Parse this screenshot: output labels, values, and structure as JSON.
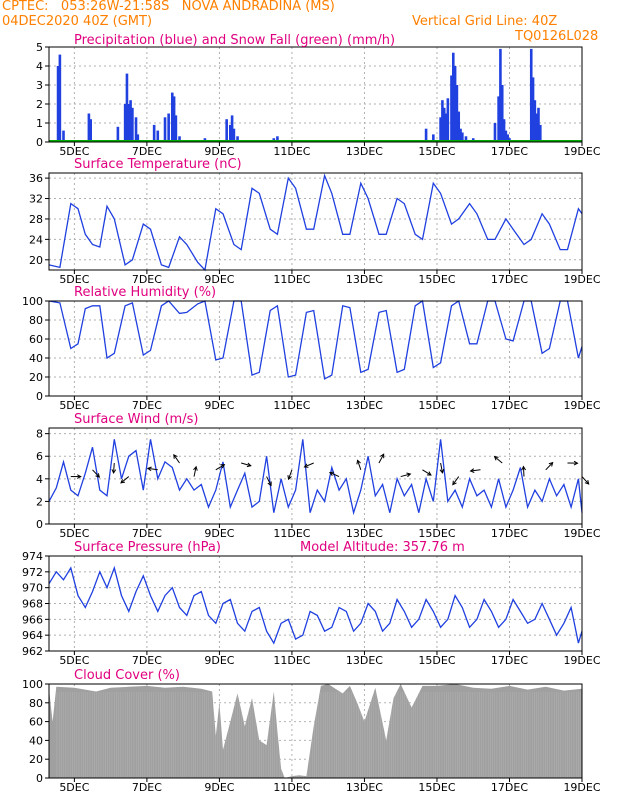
{
  "header": {
    "station": "CPTEC:   053:26W-21:58S   NOVA ANDRADINA (MS)",
    "run": "04DEC2020 40Z (GMT)",
    "grid_note": "Vertical Grid Line: 40Z",
    "code": "TQ0126L028"
  },
  "x_ticks": [
    "5DEC",
    "7DEC",
    "9DEC",
    "11DEC",
    "13DEC",
    "15DEC",
    "17DEC",
    "19DEC"
  ],
  "colors": {
    "header": "#ff8000",
    "title": "#e0007f",
    "line": "#2040e0",
    "snow": "#00aa00",
    "cloud": "#a0a0a0",
    "grid": "#b0b0b0"
  },
  "chart_data": [
    {
      "type": "bar",
      "title": "Precipitation (blue) and Snow Fall (green) (mm/h)",
      "ylim": [
        0,
        5
      ],
      "yticks": [
        "0",
        "1",
        "2",
        "3",
        "4",
        "5"
      ],
      "series": [
        {
          "name": "Precipitation",
          "color": "#2040e0",
          "x": [
            4.55,
            4.6,
            4.7,
            5.4,
            5.45,
            6.2,
            6.4,
            6.45,
            6.5,
            6.55,
            6.6,
            6.7,
            6.75,
            7.2,
            7.3,
            7.5,
            7.6,
            7.7,
            7.75,
            7.8,
            7.9,
            8.6,
            9.2,
            9.3,
            9.35,
            9.4,
            9.5,
            10.5,
            10.6,
            14.7,
            14.9,
            15.1,
            15.15,
            15.2,
            15.25,
            15.3,
            15.4,
            15.45,
            15.5,
            15.55,
            15.6,
            15.65,
            15.7,
            15.8,
            16.0,
            16.6,
            16.7,
            16.75,
            16.8,
            16.85,
            16.9,
            16.95,
            17.0,
            17.6,
            17.65,
            17.7,
            17.75,
            17.8,
            17.85
          ],
          "values": [
            4.0,
            4.6,
            0.6,
            1.5,
            1.2,
            0.8,
            2.0,
            3.6,
            2.0,
            2.2,
            1.8,
            1.3,
            0.4,
            0.9,
            0.6,
            1.3,
            1.5,
            2.6,
            2.4,
            1.4,
            0.3,
            0.2,
            1.2,
            0.9,
            1.4,
            0.7,
            0.3,
            0.2,
            0.3,
            0.7,
            0.4,
            1.3,
            2.2,
            1.8,
            1.5,
            2.3,
            3.5,
            4.7,
            4.0,
            3.0,
            1.6,
            0.7,
            0.5,
            0.3,
            0.2,
            1.0,
            2.4,
            4.9,
            3.0,
            1.2,
            0.6,
            0.4,
            0.2,
            4.9,
            3.4,
            2.2,
            1.5,
            1.8,
            0.9
          ]
        },
        {
          "name": "Snow Fall",
          "color": "#00aa00",
          "x": [
            4.3,
            19.0
          ],
          "values": [
            0,
            0
          ]
        }
      ]
    },
    {
      "type": "line",
      "title": "Surface Temperature (nC)",
      "ylim": [
        18,
        37
      ],
      "yticks": [
        "20",
        "24",
        "28",
        "32",
        "36"
      ],
      "x": [
        4.3,
        4.6,
        4.9,
        5.1,
        5.3,
        5.5,
        5.7,
        5.9,
        6.1,
        6.4,
        6.6,
        6.9,
        7.1,
        7.4,
        7.6,
        7.9,
        8.1,
        8.4,
        8.6,
        8.9,
        9.1,
        9.4,
        9.6,
        9.9,
        10.1,
        10.4,
        10.6,
        10.9,
        11.1,
        11.4,
        11.6,
        11.9,
        12.1,
        12.4,
        12.6,
        12.9,
        13.1,
        13.4,
        13.6,
        13.9,
        14.1,
        14.4,
        14.6,
        14.9,
        15.1,
        15.4,
        15.6,
        15.9,
        16.1,
        16.4,
        16.6,
        16.9,
        17.1,
        17.4,
        17.6,
        17.9,
        18.1,
        18.4,
        18.6,
        18.9,
        19.0
      ],
      "values": [
        19,
        18.5,
        31,
        30,
        25,
        23,
        22.5,
        30.5,
        28,
        19,
        20,
        27,
        26,
        19,
        18.5,
        24.5,
        23,
        19.5,
        18,
        30,
        29,
        23,
        22,
        34,
        33,
        26,
        25,
        36,
        34,
        26,
        26,
        36.5,
        33,
        25,
        25,
        35,
        32,
        25,
        25,
        32,
        31,
        25,
        24,
        35,
        33,
        27,
        28,
        31,
        29,
        24,
        24,
        28,
        26,
        23,
        24,
        29,
        27,
        22,
        22,
        30,
        29
      ]
    },
    {
      "type": "line",
      "title": "Relative Humidity (%)",
      "ylim": [
        0,
        100
      ],
      "yticks": [
        "0",
        "20",
        "40",
        "60",
        "80",
        "100"
      ],
      "x": [
        4.3,
        4.6,
        4.9,
        5.1,
        5.3,
        5.5,
        5.7,
        5.9,
        6.1,
        6.4,
        6.6,
        6.9,
        7.1,
        7.4,
        7.6,
        7.9,
        8.1,
        8.4,
        8.6,
        8.9,
        9.1,
        9.4,
        9.6,
        9.9,
        10.1,
        10.4,
        10.6,
        10.9,
        11.1,
        11.4,
        11.6,
        11.9,
        12.1,
        12.4,
        12.6,
        12.9,
        13.1,
        13.4,
        13.6,
        13.9,
        14.1,
        14.4,
        14.6,
        14.9,
        15.1,
        15.4,
        15.6,
        15.9,
        16.1,
        16.4,
        16.6,
        16.9,
        17.1,
        17.4,
        17.6,
        17.9,
        18.1,
        18.4,
        18.6,
        18.9,
        19.0
      ],
      "values": [
        100,
        98,
        50,
        55,
        92,
        95,
        95,
        40,
        45,
        95,
        98,
        43,
        48,
        95,
        100,
        87,
        88,
        97,
        100,
        38,
        40,
        100,
        100,
        22,
        25,
        90,
        95,
        20,
        22,
        88,
        90,
        18,
        22,
        95,
        93,
        25,
        28,
        88,
        90,
        25,
        28,
        95,
        100,
        30,
        35,
        95,
        100,
        55,
        55,
        100,
        100,
        60,
        58,
        100,
        100,
        45,
        50,
        100,
        100,
        40,
        52
      ]
    },
    {
      "type": "line",
      "title": "Surface Wind (m/s)",
      "ylim": [
        0,
        8.5
      ],
      "yticks": [
        "0",
        "2",
        "4",
        "6",
        "8"
      ],
      "x": [
        4.3,
        4.5,
        4.7,
        4.9,
        5.1,
        5.3,
        5.5,
        5.7,
        5.9,
        6.1,
        6.3,
        6.5,
        6.7,
        6.9,
        7.1,
        7.3,
        7.5,
        7.7,
        7.9,
        8.1,
        8.3,
        8.5,
        8.7,
        8.9,
        9.1,
        9.3,
        9.5,
        9.7,
        9.9,
        10.1,
        10.3,
        10.5,
        10.7,
        10.9,
        11.1,
        11.3,
        11.5,
        11.7,
        11.9,
        12.1,
        12.3,
        12.5,
        12.7,
        12.9,
        13.1,
        13.3,
        13.5,
        13.7,
        13.9,
        14.1,
        14.3,
        14.5,
        14.7,
        14.9,
        15.1,
        15.3,
        15.5,
        15.7,
        15.9,
        16.1,
        16.3,
        16.5,
        16.7,
        16.9,
        17.1,
        17.3,
        17.5,
        17.7,
        17.9,
        18.1,
        18.3,
        18.5,
        18.7,
        18.9,
        19.0
      ],
      "values": [
        2,
        3.2,
        5.5,
        3,
        2.5,
        4.5,
        6.8,
        3,
        2.5,
        7.5,
        4,
        6,
        6.5,
        3,
        7.5,
        4,
        5.5,
        5,
        3,
        4,
        3,
        3.5,
        1.5,
        3,
        5.5,
        1.5,
        3,
        4.5,
        1.5,
        2,
        6,
        1,
        4,
        1.5,
        3,
        7.5,
        1,
        3,
        2,
        5,
        3,
        4,
        1,
        3,
        6,
        2.5,
        3.5,
        1,
        4,
        2.5,
        3.5,
        1,
        4,
        2,
        7.5,
        2,
        3,
        1.5,
        4,
        2.5,
        3,
        1.5,
        4,
        1.5,
        3,
        5,
        1.5,
        3,
        2,
        4,
        2.5,
        3.5,
        1.5,
        4,
        1
      ]
    },
    {
      "type": "line",
      "title": "Surface Pressure (hPa)",
      "subtitle": "Model Altitude: 357.76 m",
      "ylim": [
        962,
        974
      ],
      "yticks": [
        "962",
        "964",
        "966",
        "968",
        "970",
        "972",
        "974"
      ],
      "x": [
        4.3,
        4.5,
        4.7,
        4.9,
        5.1,
        5.3,
        5.5,
        5.7,
        5.9,
        6.1,
        6.3,
        6.5,
        6.7,
        6.9,
        7.1,
        7.3,
        7.5,
        7.7,
        7.9,
        8.1,
        8.3,
        8.5,
        8.7,
        8.9,
        9.1,
        9.3,
        9.5,
        9.7,
        9.9,
        10.1,
        10.3,
        10.5,
        10.7,
        10.9,
        11.1,
        11.3,
        11.5,
        11.7,
        11.9,
        12.1,
        12.3,
        12.5,
        12.7,
        12.9,
        13.1,
        13.3,
        13.5,
        13.7,
        13.9,
        14.1,
        14.3,
        14.5,
        14.7,
        14.9,
        15.1,
        15.3,
        15.5,
        15.7,
        15.9,
        16.1,
        16.3,
        16.5,
        16.7,
        16.9,
        17.1,
        17.3,
        17.5,
        17.7,
        17.9,
        18.1,
        18.3,
        18.5,
        18.7,
        18.9,
        19.0
      ],
      "values": [
        970.5,
        972,
        971,
        972.5,
        969,
        967.5,
        969.5,
        972,
        970,
        972.5,
        969,
        967,
        969.5,
        971.5,
        969,
        967,
        969,
        970,
        967.5,
        966.5,
        969,
        969.5,
        966.5,
        965.5,
        968,
        968.5,
        965.5,
        964.5,
        967,
        967.5,
        964.5,
        963,
        965.5,
        966,
        963.5,
        964,
        967,
        966.5,
        964.5,
        965,
        967.5,
        967,
        964.5,
        965.5,
        968,
        967,
        964.5,
        965.5,
        968.5,
        967,
        965,
        966,
        968.5,
        967,
        965,
        966,
        969,
        967.5,
        965,
        966,
        968.5,
        967,
        965,
        966,
        968.5,
        967,
        965.5,
        966,
        968,
        966,
        964,
        965.5,
        967.5,
        963,
        964.5
      ]
    },
    {
      "type": "area",
      "title": "Cloud Cover (%)",
      "ylim": [
        0,
        100
      ],
      "yticks": [
        "0",
        "20",
        "40",
        "60",
        "80",
        "100"
      ],
      "x": [
        4.3,
        4.4,
        4.5,
        5.0,
        5.6,
        6.0,
        6.5,
        7.0,
        7.5,
        8.0,
        8.5,
        8.8,
        8.9,
        9.0,
        9.1,
        9.3,
        9.5,
        9.7,
        9.9,
        10.1,
        10.3,
        10.5,
        10.6,
        10.7,
        10.8,
        11.0,
        11.2,
        11.4,
        11.6,
        11.8,
        12.0,
        12.2,
        12.4,
        12.6,
        12.8,
        13.0,
        13.3,
        13.6,
        13.8,
        14.0,
        14.3,
        14.6,
        15.0,
        15.5,
        16.0,
        16.5,
        17.0,
        17.5,
        18.0,
        18.5,
        19.0
      ],
      "values": [
        95,
        60,
        97,
        96,
        92,
        96,
        97,
        98,
        96,
        97,
        95,
        92,
        45,
        80,
        30,
        60,
        90,
        55,
        85,
        40,
        35,
        92,
        50,
        10,
        0,
        2,
        3,
        2,
        55,
        98,
        100,
        95,
        90,
        98,
        80,
        60,
        96,
        40,
        85,
        100,
        75,
        98,
        98,
        100,
        96,
        95,
        98,
        94,
        97,
        93,
        95
      ]
    }
  ]
}
